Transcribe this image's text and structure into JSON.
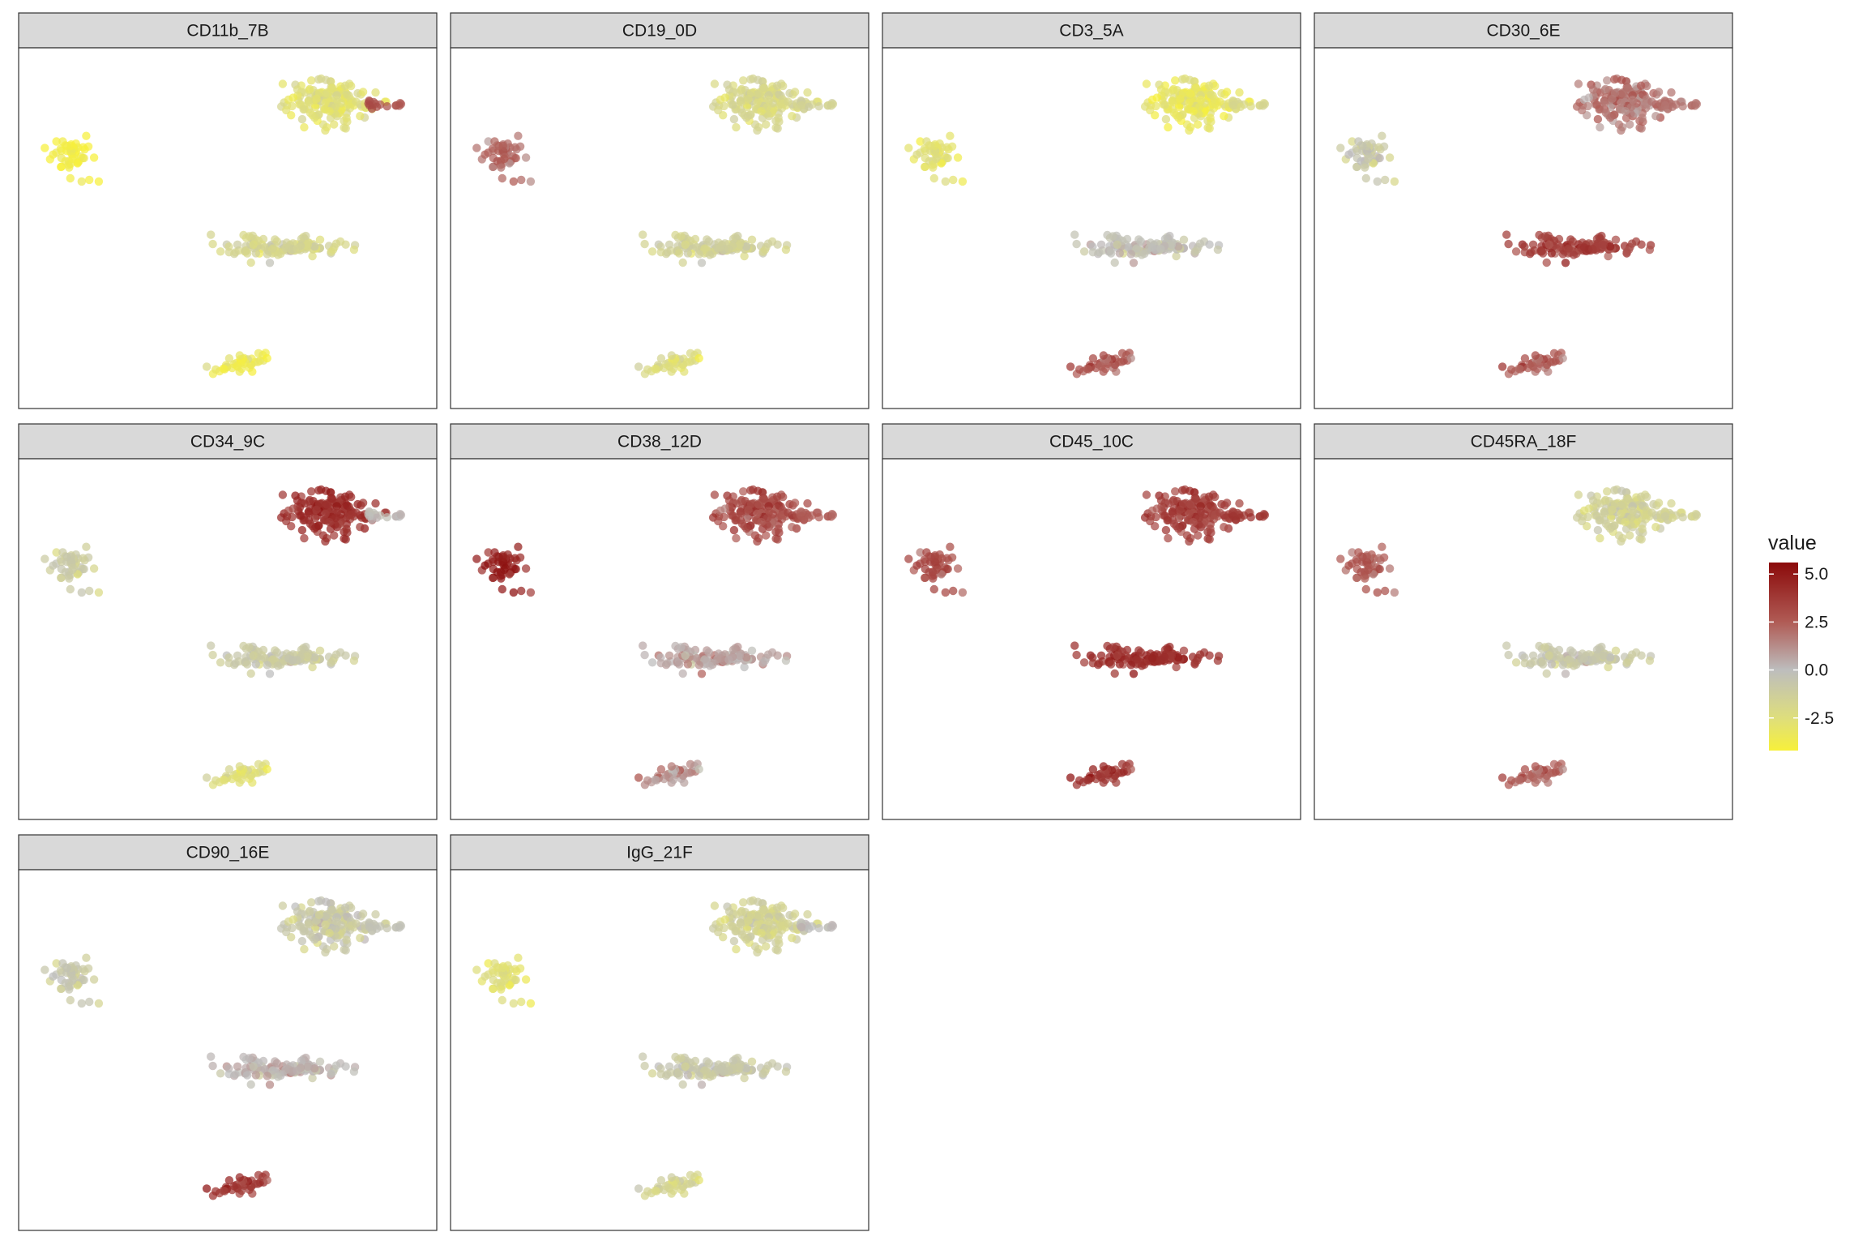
{
  "chart_data": {
    "type": "scatter",
    "layout": "faceted grid, 4 columns x 3 rows, shared axes, axes hidden",
    "point_style": "semi-transparent filled circles",
    "clusters": [
      {
        "id": "A",
        "x": 7.6,
        "y": 8.9,
        "count": 160,
        "shape": "large blob with tail to the right"
      },
      {
        "id": "B",
        "x": 0.9,
        "y": 7.3,
        "count": 45,
        "shape": "small blob with a few outliers"
      },
      {
        "id": "C",
        "x": 6.4,
        "y": 4.4,
        "count": 120,
        "shape": "elongated horizontal blob"
      },
      {
        "id": "D",
        "x": 5.4,
        "y": 0.8,
        "count": 40,
        "shape": "small elongated blob"
      }
    ],
    "facets": [
      {
        "name": "CD11b_7B",
        "cluster_values": {
          "A": -2.6,
          "B": -4.2,
          "C": -1.8,
          "D": -3.6
        },
        "tail_value": 3.0,
        "variation": 1.0
      },
      {
        "name": "CD19_0D",
        "cluster_values": {
          "A": -2.0,
          "B": 2.0,
          "C": -1.5,
          "D": -2.5
        },
        "tail_value": -1.5,
        "variation": 0.9
      },
      {
        "name": "CD3_5A",
        "cluster_values": {
          "A": -3.2,
          "B": -3.0,
          "C": -0.2,
          "D": 2.6
        },
        "tail_value": -2.0,
        "variation": 1.0
      },
      {
        "name": "CD30_6E",
        "cluster_values": {
          "A": 1.8,
          "B": -1.0,
          "C": 3.6,
          "D": 2.4
        },
        "tail_value": 2.0,
        "variation": 1.2
      },
      {
        "name": "CD34_9C",
        "cluster_values": {
          "A": 4.2,
          "B": -1.2,
          "C": -1.0,
          "D": -2.6
        },
        "tail_value": 0.0,
        "variation": 0.9
      },
      {
        "name": "CD38_12D",
        "cluster_values": {
          "A": 3.2,
          "B": 4.6,
          "C": 0.6,
          "D": 1.0
        },
        "tail_value": 2.5,
        "variation": 1.2
      },
      {
        "name": "CD45_10C",
        "cluster_values": {
          "A": 3.6,
          "B": 3.0,
          "C": 4.2,
          "D": 4.0
        },
        "tail_value": 4.0,
        "variation": 1.0
      },
      {
        "name": "CD45RA_18F",
        "cluster_values": {
          "A": -1.5,
          "B": 2.4,
          "C": -0.8,
          "D": 2.4
        },
        "tail_value": -1.5,
        "variation": 1.0
      },
      {
        "name": "CD90_16E",
        "cluster_values": {
          "A": -0.9,
          "B": -1.0,
          "C": 0.2,
          "D": 3.8
        },
        "tail_value": -0.5,
        "variation": 1.1
      },
      {
        "name": "IgG_21F",
        "cluster_values": {
          "A": -1.6,
          "B": -2.8,
          "C": -0.8,
          "D": -1.8
        },
        "tail_value": 0.0,
        "variation": 0.9
      }
    ],
    "color_scale": {
      "title": "value",
      "type": "gradient",
      "stops": [
        {
          "value": -4.2,
          "color": "#f7f03a"
        },
        {
          "value": -2.5,
          "color": "#dede7c"
        },
        {
          "value": 0.0,
          "color": "#bdbdbd"
        },
        {
          "value": 2.5,
          "color": "#b05b55"
        },
        {
          "value": 5.6,
          "color": "#8b0a0a"
        }
      ],
      "range": [
        -4.2,
        5.6
      ],
      "ticks": [
        5.0,
        2.5,
        0.0,
        -2.5
      ],
      "tick_labels": [
        "5.0",
        "2.5",
        "0.0",
        "-2.5"
      ]
    },
    "xlim": [
      0,
      10
    ],
    "ylim": [
      0,
      10
    ],
    "grid": false,
    "legend_position": "right"
  },
  "colors": {
    "strip_background": "#d9d9d9",
    "panel_border": "#333333",
    "background": "#ffffff"
  }
}
